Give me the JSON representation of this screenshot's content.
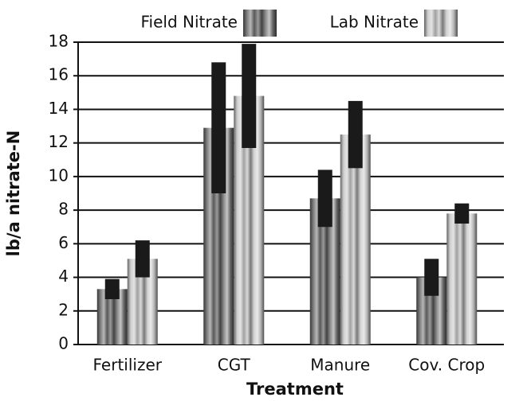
{
  "chart_data": {
    "type": "bar",
    "x_label": "Treatment",
    "y_label": "lb/a nitrate-N",
    "categories": [
      "Fertilizer",
      "CGT",
      "Manure",
      "Cov. Crop"
    ],
    "series": [
      {
        "name": "Field Nitrate",
        "color": "#6e6e6e",
        "values": [
          3.3,
          12.9,
          8.7,
          4.0
        ],
        "errors": [
          0.6,
          3.9,
          1.7,
          1.1
        ]
      },
      {
        "name": "Lab Nitrate",
        "color": "#c8c8c8",
        "values": [
          5.1,
          14.8,
          12.5,
          7.8
        ],
        "errors": [
          1.1,
          3.1,
          2.0,
          0.6
        ]
      }
    ],
    "error_color": "#1a1a1a",
    "ylim": [
      0,
      18
    ],
    "yticks": [
      0,
      2,
      4,
      6,
      8,
      10,
      12,
      14,
      16,
      18
    ],
    "grid": true,
    "legend": "top"
  }
}
